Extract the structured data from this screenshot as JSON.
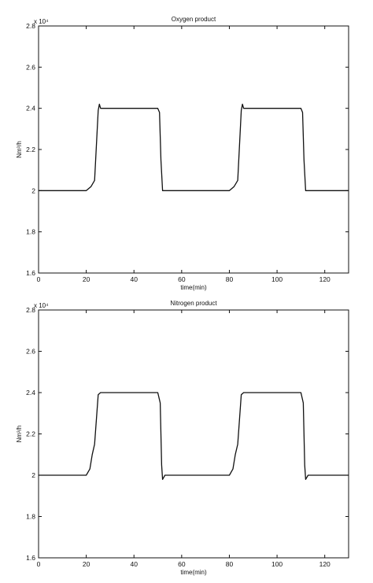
{
  "chart_data": [
    {
      "type": "line",
      "title": "Oxygen product",
      "xlabel": "time(min)",
      "ylabel": "Nm³/h",
      "y_scale_label": "x 10⁴",
      "xlim": [
        0,
        130
      ],
      "ylim": [
        1.6,
        2.8
      ],
      "x_ticks": [
        0,
        20,
        40,
        60,
        80,
        100,
        120
      ],
      "y_ticks": [
        1.6,
        1.8,
        2.0,
        2.2,
        2.4,
        2.6,
        2.8
      ],
      "x_tick_labels": [
        "0",
        "20",
        "40",
        "60",
        "80",
        "100",
        "120"
      ],
      "y_tick_labels": [
        "1.6",
        "1.8",
        "2",
        "2.2",
        "2.4",
        "2.6",
        "2.8"
      ],
      "grid": false,
      "series": [
        {
          "x": [
            0,
            20,
            22,
            23.5,
            25,
            25.5,
            26,
            50,
            50.7,
            51.3,
            52,
            80,
            82,
            83.5,
            85,
            85.5,
            86,
            110,
            110.7,
            111.3,
            112,
            130
          ],
          "y": [
            2.0,
            2.0,
            2.02,
            2.05,
            2.39,
            2.42,
            2.4,
            2.4,
            2.38,
            2.15,
            2.0,
            2.0,
            2.02,
            2.05,
            2.39,
            2.42,
            2.4,
            2.4,
            2.38,
            2.15,
            2.0,
            2.0
          ]
        }
      ]
    },
    {
      "type": "line",
      "title": "Nitrogen product",
      "xlabel": "time(min)",
      "ylabel": "Nm³/h",
      "y_scale_label": "x 10⁴",
      "xlim": [
        0,
        130
      ],
      "ylim": [
        1.6,
        2.8
      ],
      "x_ticks": [
        0,
        20,
        40,
        60,
        80,
        100,
        120
      ],
      "y_ticks": [
        1.6,
        1.8,
        2.0,
        2.2,
        2.4,
        2.6,
        2.8
      ],
      "x_tick_labels": [
        "0",
        "20",
        "40",
        "60",
        "80",
        "100",
        "120"
      ],
      "y_tick_labels": [
        "1.6",
        "1.8",
        "2",
        "2.2",
        "2.4",
        "2.6",
        "2.8"
      ],
      "grid": false,
      "series": [
        {
          "x": [
            0,
            20,
            21.5,
            22.5,
            23.5,
            25,
            26,
            50,
            51,
            51.6,
            52,
            53,
            80,
            81.5,
            82.5,
            83.5,
            85,
            86,
            110,
            111,
            111.6,
            112,
            113,
            130
          ],
          "y": [
            2.0,
            2.0,
            2.03,
            2.1,
            2.15,
            2.39,
            2.4,
            2.4,
            2.35,
            2.05,
            1.98,
            2.0,
            2.0,
            2.03,
            2.1,
            2.15,
            2.39,
            2.4,
            2.4,
            2.35,
            2.05,
            1.98,
            2.0,
            2.0
          ]
        }
      ]
    }
  ]
}
